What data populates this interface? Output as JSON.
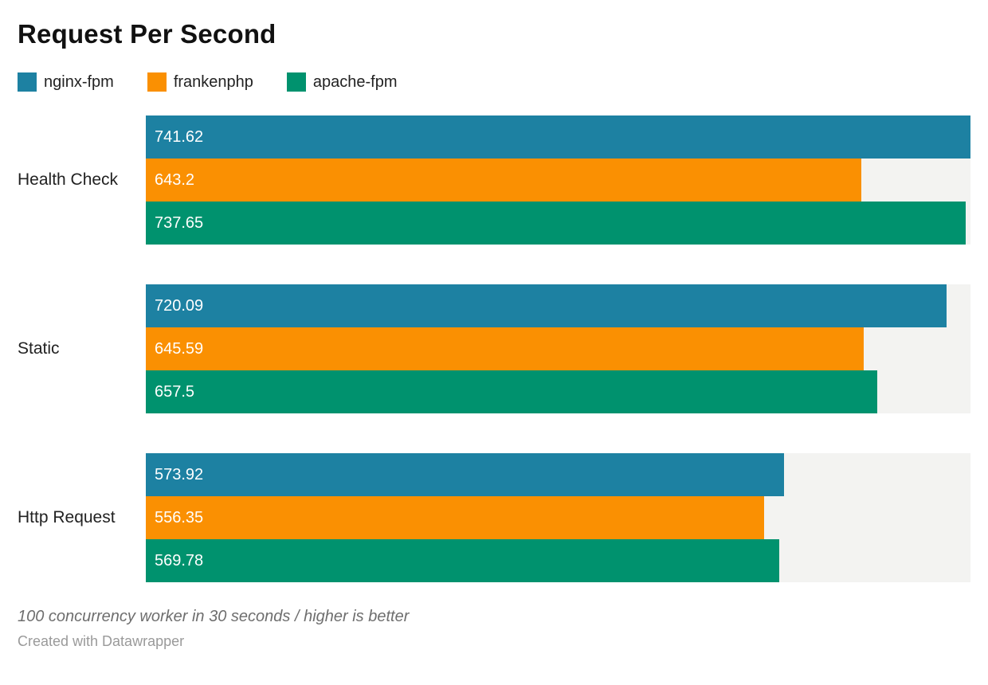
{
  "header": {
    "title": "Request Per Second"
  },
  "legend": [
    {
      "label": "nginx-fpm",
      "color": "#1d81a2"
    },
    {
      "label": "frankenphp",
      "color": "#fa9002"
    },
    {
      "label": "apache-fpm",
      "color": "#00926e"
    }
  ],
  "chart_data": {
    "type": "bar",
    "orientation": "horizontal",
    "title": "Request Per Second",
    "categories": [
      "Health Check",
      "Static",
      "Http Request"
    ],
    "series": [
      {
        "name": "nginx-fpm",
        "color": "#1d81a2",
        "values": [
          741.62,
          720.09,
          573.92
        ]
      },
      {
        "name": "frankenphp",
        "color": "#fa9002",
        "values": [
          643.2,
          645.59,
          556.35
        ]
      },
      {
        "name": "apache-fpm",
        "color": "#00926e",
        "values": [
          737.65,
          657.5,
          569.78
        ]
      }
    ],
    "value_labels_shown": true,
    "xlim": [
      0,
      741.62
    ],
    "grid": false,
    "legend_position": "top",
    "track_color": "#f3f3f1"
  },
  "footer": {
    "note": "100 concurrency worker in 30 seconds / higher is better",
    "credit": "Created with Datawrapper"
  }
}
